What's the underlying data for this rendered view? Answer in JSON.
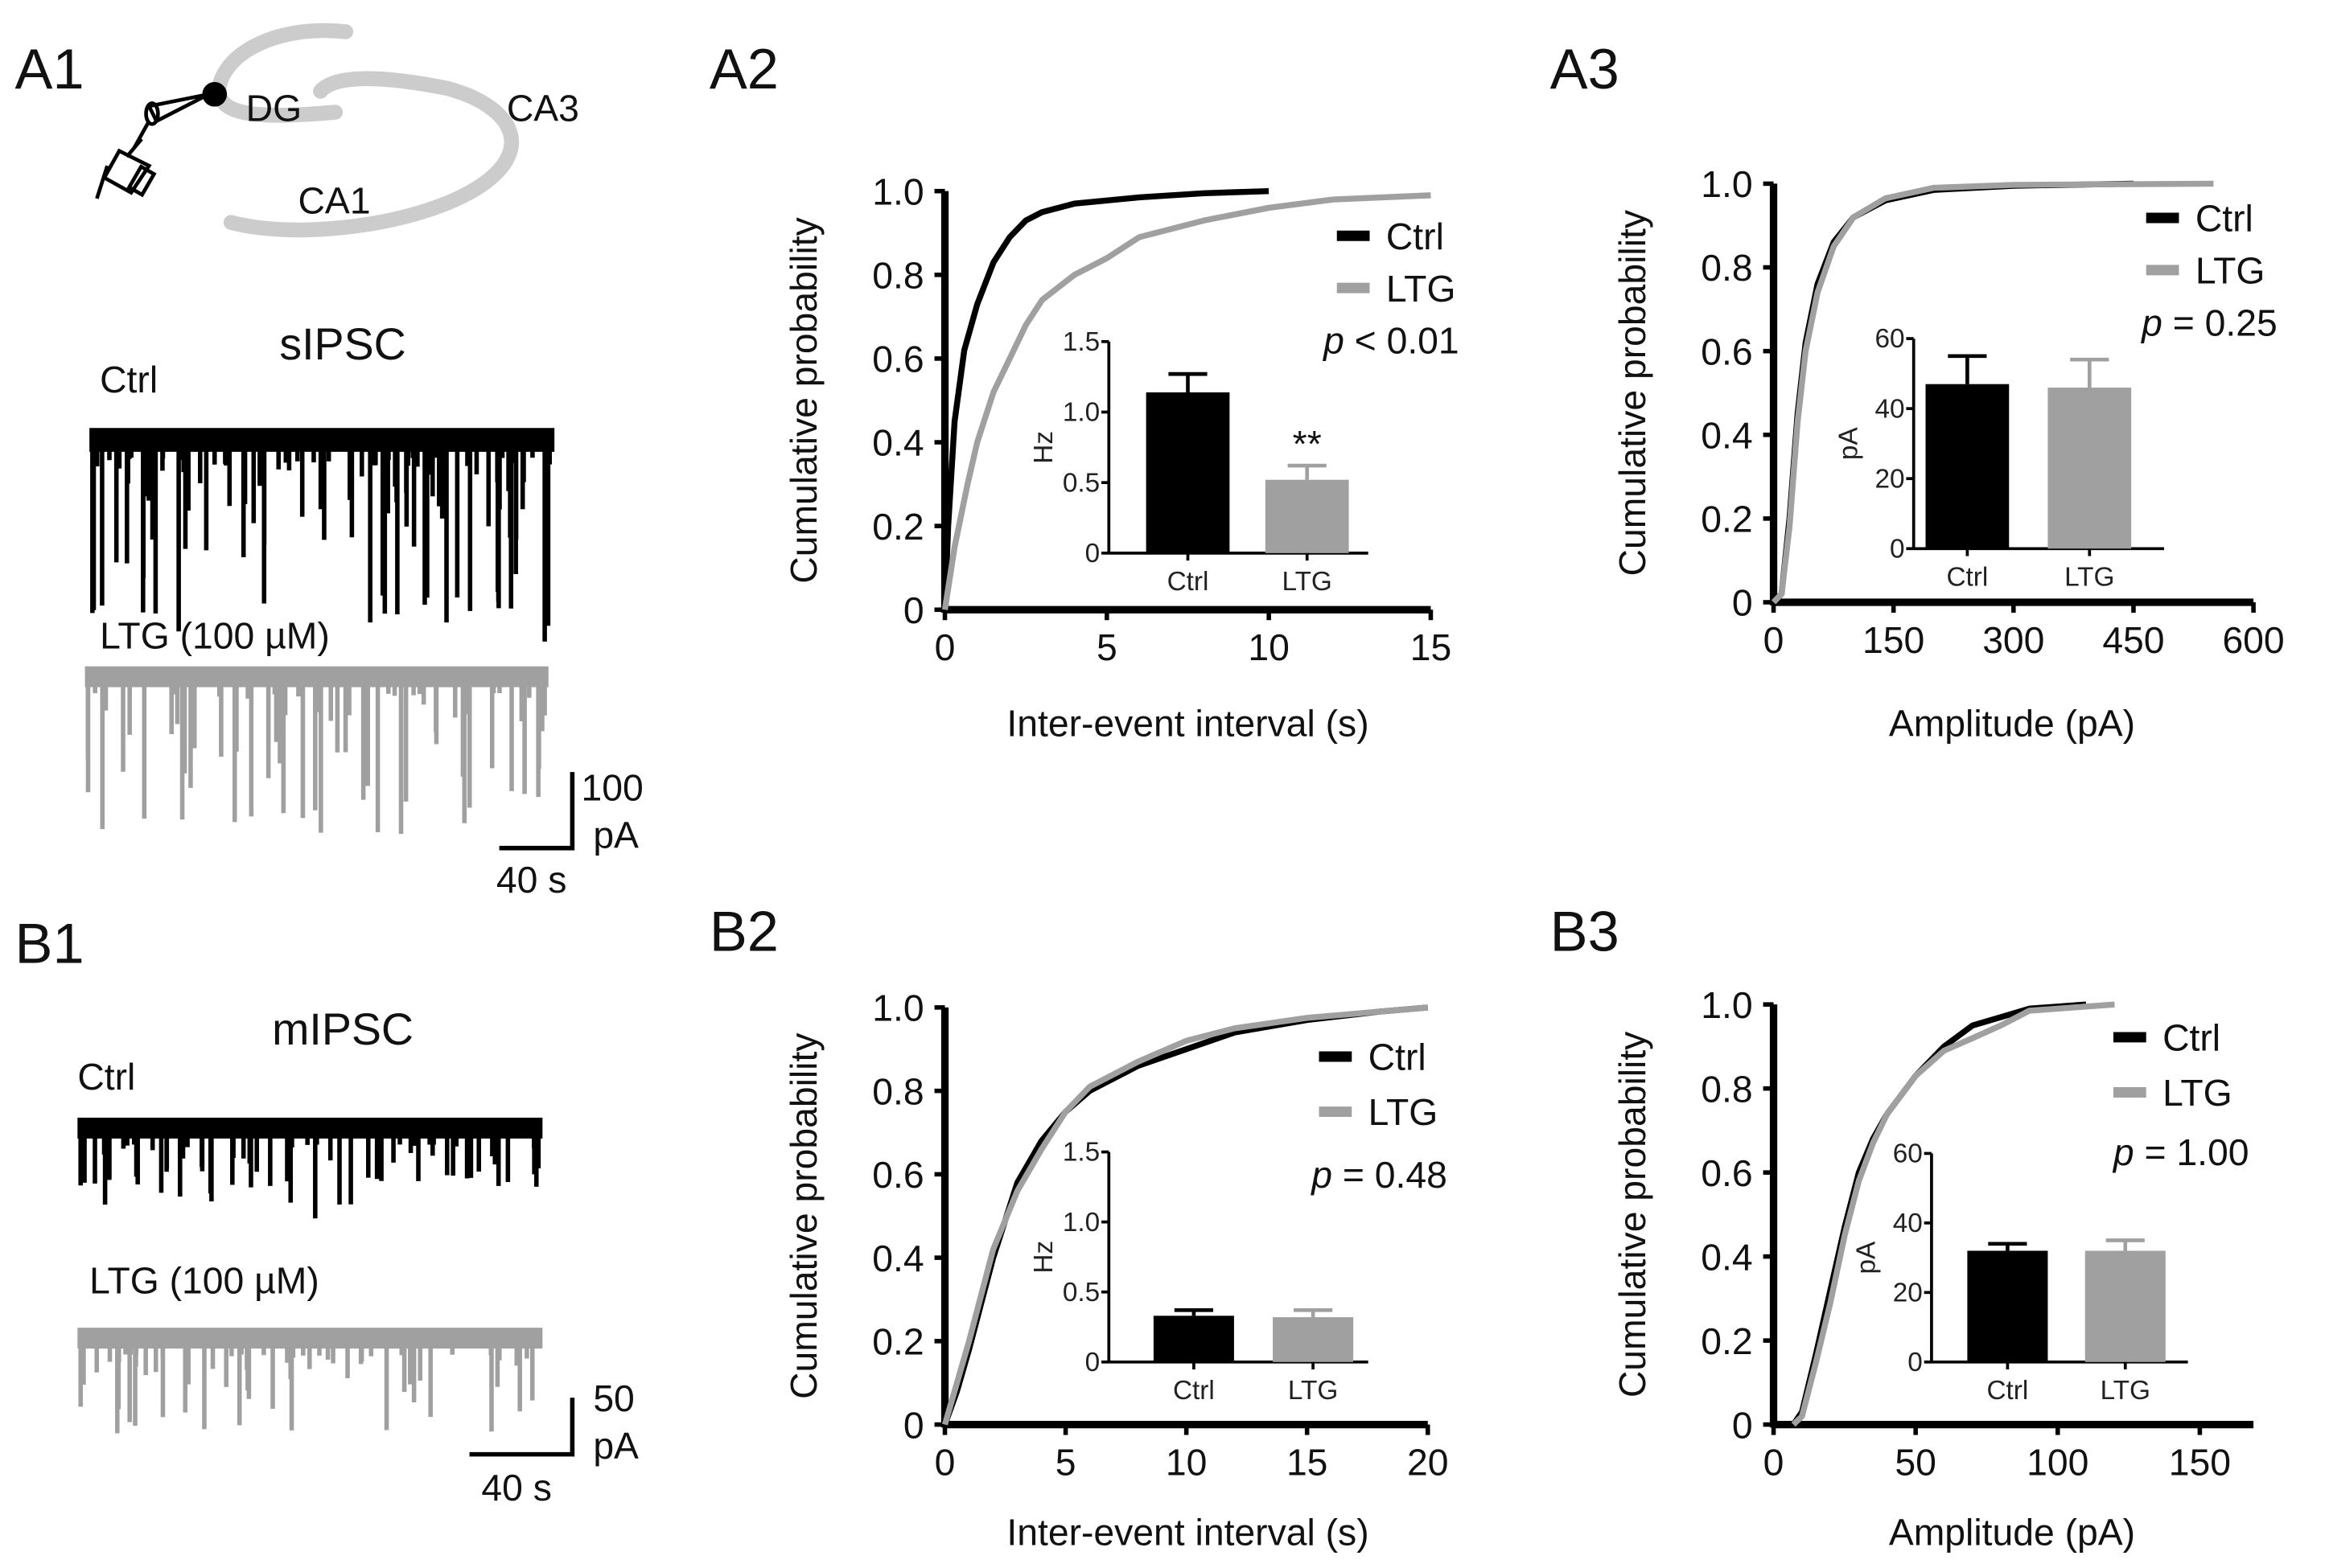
{
  "panels": {
    "A1": "A1",
    "A2": "A2",
    "A3": "A3",
    "B1": "B1",
    "B2": "B2",
    "B3": "B3"
  },
  "a1": {
    "regions": {
      "dg": "DG",
      "ca3": "CA3",
      "ca1": "CA1"
    },
    "title": "sIPSC",
    "ctrl_label": "Ctrl",
    "ltg_label": "LTG (100 µM)",
    "scale_y_value": "100",
    "scale_y_unit": "pA",
    "scale_x": "40 s"
  },
  "b1": {
    "title": "mIPSC",
    "ctrl_label": "Ctrl",
    "ltg_label": "LTG (100 µM)",
    "scale_y_value": "50",
    "scale_y_unit": "pA",
    "scale_x": "40 s"
  },
  "colors": {
    "ctrl": "#000000",
    "ltg": "#a0a0a0",
    "diagram": "#cccccc"
  },
  "chart_data": [
    {
      "id": "A2",
      "type": "line",
      "xlabel": "Inter-event interval (s)",
      "ylabel": "Cumulative probability",
      "xlim": [
        0,
        15
      ],
      "ylim": [
        0,
        1
      ],
      "xticks": [
        "0",
        "5",
        "10",
        "15"
      ],
      "yticks": [
        "0",
        "0.2",
        "0.4",
        "0.6",
        "0.8",
        "1.0"
      ],
      "legend": {
        "position": "top-right",
        "entries": [
          "Ctrl",
          "LTG"
        ]
      },
      "p_symbol": "p",
      "p_text": " < 0.01",
      "series": [
        {
          "name": "Ctrl",
          "points": [
            [
              0,
              0
            ],
            [
              0.1,
              0.2
            ],
            [
              0.3,
              0.45
            ],
            [
              0.6,
              0.62
            ],
            [
              1,
              0.73
            ],
            [
              1.5,
              0.83
            ],
            [
              2,
              0.89
            ],
            [
              2.5,
              0.93
            ],
            [
              3,
              0.95
            ],
            [
              4,
              0.97
            ],
            [
              6,
              0.985
            ],
            [
              8,
              0.995
            ],
            [
              10,
              1
            ]
          ]
        },
        {
          "name": "LTG",
          "points": [
            [
              0,
              0
            ],
            [
              0.3,
              0.15
            ],
            [
              0.7,
              0.3
            ],
            [
              1,
              0.4
            ],
            [
              1.5,
              0.52
            ],
            [
              2,
              0.6
            ],
            [
              2.5,
              0.68
            ],
            [
              3,
              0.74
            ],
            [
              4,
              0.8
            ],
            [
              5,
              0.84
            ],
            [
              6,
              0.89
            ],
            [
              8,
              0.93
            ],
            [
              10,
              0.96
            ],
            [
              12,
              0.98
            ],
            [
              15,
              0.99
            ]
          ]
        }
      ],
      "inset": {
        "type": "bar",
        "ylabel": "Hz",
        "ylim": [
          0,
          1.5
        ],
        "yticks": [
          "0",
          "0.5",
          "1.0",
          "1.5"
        ],
        "categories": [
          "Ctrl",
          "LTG"
        ],
        "values": [
          1.14,
          0.52
        ],
        "errors": [
          0.13,
          0.1
        ],
        "annotation": "**"
      }
    },
    {
      "id": "A3",
      "type": "line",
      "xlabel": "Amplitude (pA)",
      "ylabel": "Cumulative probability",
      "xlim": [
        0,
        600
      ],
      "ylim": [
        0,
        1
      ],
      "xticks": [
        "0",
        "150",
        "300",
        "450",
        "600"
      ],
      "yticks": [
        "0",
        "0.2",
        "0.4",
        "0.6",
        "0.8",
        "1.0"
      ],
      "legend": {
        "position": "top-right",
        "entries": [
          "Ctrl",
          "LTG"
        ]
      },
      "p_symbol": "p",
      "p_text": " = 0.25",
      "series": [
        {
          "name": "Ctrl",
          "points": [
            [
              0,
              0
            ],
            [
              10,
              0.02
            ],
            [
              20,
              0.2
            ],
            [
              30,
              0.45
            ],
            [
              40,
              0.62
            ],
            [
              55,
              0.76
            ],
            [
              75,
              0.86
            ],
            [
              100,
              0.92
            ],
            [
              140,
              0.96
            ],
            [
              200,
              0.985
            ],
            [
              300,
              0.995
            ],
            [
              450,
              1
            ]
          ]
        },
        {
          "name": "LTG",
          "points": [
            [
              0,
              0
            ],
            [
              10,
              0.02
            ],
            [
              20,
              0.18
            ],
            [
              30,
              0.43
            ],
            [
              40,
              0.6
            ],
            [
              55,
              0.74
            ],
            [
              75,
              0.85
            ],
            [
              100,
              0.92
            ],
            [
              140,
              0.965
            ],
            [
              200,
              0.99
            ],
            [
              300,
              0.997
            ],
            [
              550,
              1
            ]
          ]
        }
      ],
      "inset": {
        "type": "bar",
        "ylabel": "pA",
        "ylim": [
          0,
          60
        ],
        "yticks": [
          "0",
          "20",
          "40",
          "60"
        ],
        "categories": [
          "Ctrl",
          "LTG"
        ],
        "values": [
          47,
          46
        ],
        "errors": [
          8,
          8
        ],
        "annotation": ""
      }
    },
    {
      "id": "B2",
      "type": "line",
      "xlabel": "Inter-event interval (s)",
      "ylabel": "Cumulative probability",
      "xlim": [
        0,
        20
      ],
      "ylim": [
        0,
        1
      ],
      "xticks": [
        "0",
        "5",
        "10",
        "15",
        "20"
      ],
      "yticks": [
        "0",
        "0.2",
        "0.4",
        "0.6",
        "0.8",
        "1.0"
      ],
      "legend": {
        "position": "top-right",
        "entries": [
          "Ctrl",
          "LTG"
        ]
      },
      "p_symbol": "p",
      "p_text": " = 0.48",
      "series": [
        {
          "name": "Ctrl",
          "points": [
            [
              0,
              0
            ],
            [
              0.5,
              0.08
            ],
            [
              1,
              0.18
            ],
            [
              2,
              0.4
            ],
            [
              3,
              0.58
            ],
            [
              4,
              0.68
            ],
            [
              5,
              0.75
            ],
            [
              6,
              0.8
            ],
            [
              8,
              0.86
            ],
            [
              10,
              0.9
            ],
            [
              12,
              0.94
            ],
            [
              15,
              0.97
            ],
            [
              18,
              0.99
            ],
            [
              20,
              1
            ]
          ]
        },
        {
          "name": "LTG",
          "points": [
            [
              0,
              0
            ],
            [
              0.5,
              0.1
            ],
            [
              1,
              0.2
            ],
            [
              2,
              0.42
            ],
            [
              3,
              0.56
            ],
            [
              4,
              0.66
            ],
            [
              5,
              0.75
            ],
            [
              6,
              0.81
            ],
            [
              8,
              0.87
            ],
            [
              10,
              0.92
            ],
            [
              12,
              0.95
            ],
            [
              15,
              0.975
            ],
            [
              18,
              0.99
            ],
            [
              20,
              1
            ]
          ]
        }
      ],
      "inset": {
        "type": "bar",
        "ylabel": "Hz",
        "ylim": [
          0,
          1.5
        ],
        "yticks": [
          "0",
          "0.5",
          "1.0",
          "1.5"
        ],
        "categories": [
          "Ctrl",
          "LTG"
        ],
        "values": [
          0.33,
          0.32
        ],
        "errors": [
          0.04,
          0.05
        ],
        "annotation": ""
      }
    },
    {
      "id": "B3",
      "type": "line",
      "xlabel": "Amplitude (pA)",
      "ylabel": "Cumulative probability",
      "xlim": [
        0,
        169
      ],
      "ylim": [
        0,
        1
      ],
      "xticks": [
        "0",
        "50",
        "100",
        "150"
      ],
      "yticks": [
        "0",
        "0.2",
        "0.4",
        "0.6",
        "0.8",
        "1.0"
      ],
      "legend": {
        "position": "top-right",
        "entries": [
          "Ctrl",
          "LTG"
        ]
      },
      "p_symbol": "p",
      "p_text": " = 1.00",
      "series": [
        {
          "name": "Ctrl",
          "points": [
            [
              7,
              0
            ],
            [
              10,
              0.03
            ],
            [
              15,
              0.17
            ],
            [
              20,
              0.32
            ],
            [
              25,
              0.47
            ],
            [
              30,
              0.6
            ],
            [
              35,
              0.68
            ],
            [
              40,
              0.74
            ],
            [
              50,
              0.83
            ],
            [
              60,
              0.9
            ],
            [
              70,
              0.95
            ],
            [
              80,
              0.97
            ],
            [
              90,
              0.99
            ],
            [
              110,
              1
            ]
          ]
        },
        {
          "name": "LTG",
          "points": [
            [
              7,
              0
            ],
            [
              10,
              0.02
            ],
            [
              15,
              0.15
            ],
            [
              20,
              0.29
            ],
            [
              25,
              0.45
            ],
            [
              30,
              0.58
            ],
            [
              35,
              0.67
            ],
            [
              40,
              0.74
            ],
            [
              50,
              0.83
            ],
            [
              60,
              0.89
            ],
            [
              70,
              0.92
            ],
            [
              80,
              0.95
            ],
            [
              90,
              0.985
            ],
            [
              120,
              1
            ]
          ]
        }
      ],
      "inset": {
        "type": "bar",
        "ylabel": "pA",
        "ylim": [
          0,
          60
        ],
        "yticks": [
          "0",
          "20",
          "40",
          "60"
        ],
        "categories": [
          "Ctrl",
          "LTG"
        ],
        "values": [
          32,
          32
        ],
        "errors": [
          2,
          3
        ],
        "annotation": ""
      }
    }
  ]
}
